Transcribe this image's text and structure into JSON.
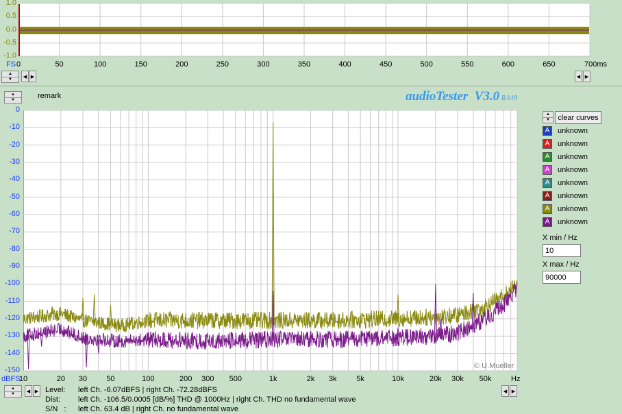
{
  "scope": {
    "yticks": [
      "1.0",
      "0.5",
      "0.0",
      "-0.5",
      "-1.0"
    ],
    "fs_label": "FS",
    "xticks": [
      "0",
      "50",
      "100",
      "150",
      "200",
      "250",
      "300",
      "350",
      "400",
      "450",
      "500",
      "550",
      "600",
      "650",
      "700ms"
    ]
  },
  "header": {
    "remark": "remark",
    "app_title": "audioTester  V3.0",
    "version": "B b19"
  },
  "buttons": {
    "clear_curves": "clear curves"
  },
  "legend": [
    {
      "label": "unknown",
      "color": "#1c3ccc"
    },
    {
      "label": "unknown",
      "color": "#d42020"
    },
    {
      "label": "unknown",
      "color": "#2a8a2a"
    },
    {
      "label": "unknown",
      "color": "#d040d0"
    },
    {
      "label": "unknown",
      "color": "#2a8a8a"
    },
    {
      "label": "unknown",
      "color": "#8a1c1c"
    },
    {
      "label": "unknown",
      "color": "#8a8a10"
    },
    {
      "label": "unknown",
      "color": "#7a1a8a"
    }
  ],
  "legend_glyph": "A",
  "xmin": {
    "label": "X min / Hz",
    "value": "10"
  },
  "xmax": {
    "label": "X max / Hz",
    "value": "90000"
  },
  "watermark": "© U.Mueller",
  "status": {
    "level_label": "Level:",
    "level_text": "left Ch. -6.07dBFS | right Ch. -72.28dBFS",
    "dist_label": "Dist:",
    "dist_text": "left Ch. -106.5/0.0005 [dB/%] THD @ 1000Hz  | right Ch. THD no fundamental wave",
    "sn_label": "S/N   :",
    "sn_text": "left Ch. 63.4 dB  | right Ch.  no fundamental wave"
  },
  "chart_data": {
    "type": "line",
    "title": "",
    "xlabel": "Hz",
    "ylabel": "dBFS",
    "xscale": "log",
    "xlim": [
      10,
      90000
    ],
    "ylim": [
      -150,
      0
    ],
    "yticks": [
      0,
      -10,
      -20,
      -30,
      -40,
      -50,
      -60,
      -70,
      -80,
      -90,
      -100,
      -110,
      -120,
      -130,
      -140,
      -150
    ],
    "xtick_labels": [
      "10",
      "20",
      "30",
      "50",
      "100",
      "200",
      "300",
      "500",
      "1k",
      "2k",
      "3k",
      "5k",
      "10k",
      "20k",
      "30k",
      "50k",
      "Hz"
    ],
    "xtick_values": [
      10,
      20,
      30,
      50,
      100,
      200,
      300,
      500,
      1000,
      2000,
      3000,
      5000,
      10000,
      20000,
      30000,
      50000
    ],
    "grid": true,
    "series": [
      {
        "color": "#8a8a10",
        "baseline": [
          [
            10,
            -120
          ],
          [
            20,
            -117
          ],
          [
            30,
            -121
          ],
          [
            60,
            -124
          ],
          [
            100,
            -121
          ],
          [
            300,
            -121
          ],
          [
            1000,
            -121
          ],
          [
            3000,
            -121
          ],
          [
            10000,
            -120
          ],
          [
            20000,
            -119
          ],
          [
            30000,
            -118
          ],
          [
            50000,
            -113
          ],
          [
            70000,
            -107
          ],
          [
            90000,
            -100
          ]
        ],
        "peaks": [
          [
            17,
            -113
          ],
          [
            30,
            -108
          ],
          [
            37,
            -106
          ],
          [
            50,
            -112
          ],
          [
            1000,
            -7
          ],
          [
            3000,
            -120
          ],
          [
            10000,
            -106
          ],
          [
            20000,
            -115
          ],
          [
            40000,
            -110
          ]
        ]
      },
      {
        "color": "#7a1a8a",
        "baseline": [
          [
            10,
            -130
          ],
          [
            20,
            -126
          ],
          [
            30,
            -131
          ],
          [
            60,
            -133
          ],
          [
            100,
            -132
          ],
          [
            300,
            -133
          ],
          [
            1000,
            -132
          ],
          [
            3000,
            -132
          ],
          [
            10000,
            -131
          ],
          [
            20000,
            -130
          ],
          [
            30000,
            -128
          ],
          [
            50000,
            -120
          ],
          [
            70000,
            -112
          ],
          [
            90000,
            -102
          ]
        ],
        "peaks": [
          [
            11,
            -149
          ],
          [
            14,
            -136
          ],
          [
            32,
            -148
          ],
          [
            40,
            -140
          ],
          [
            1000,
            -104
          ],
          [
            2000,
            -127
          ],
          [
            10000,
            -125
          ],
          [
            20000,
            -100
          ],
          [
            22000,
            -120
          ],
          [
            40000,
            -105
          ]
        ]
      }
    ]
  }
}
